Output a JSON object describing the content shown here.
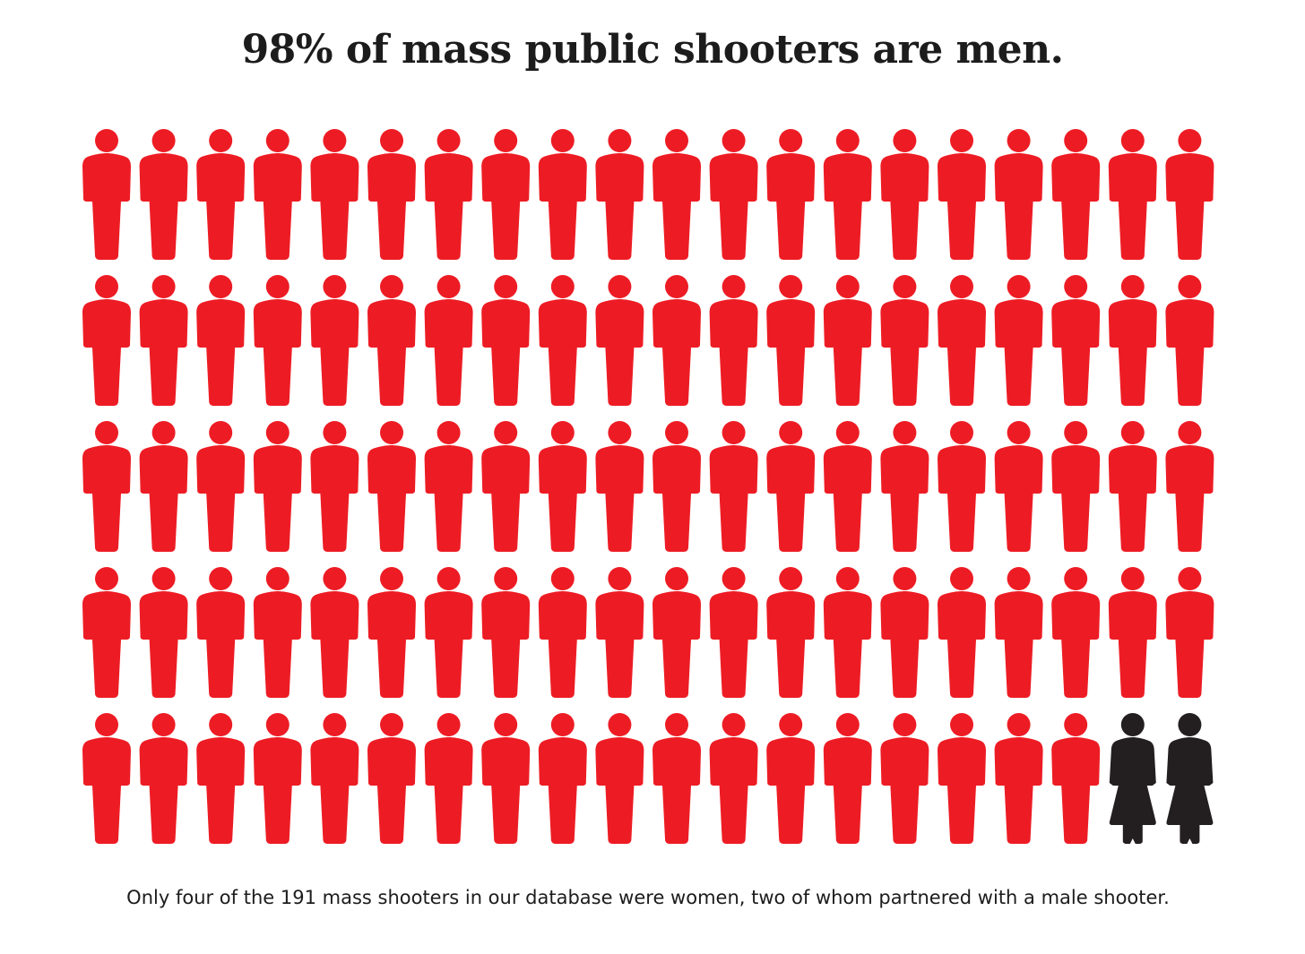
{
  "chart_data": {
    "type": "pictograph",
    "title": "98% of mass public shooters are men.",
    "caption": "Only four of the 191 mass shooters in our database were women, two of whom partnered with a male shooter.",
    "rows": 5,
    "columns": 20,
    "series": [
      {
        "name": "Men",
        "icon": "male-person-icon",
        "count": 98,
        "color": "#ed1c24"
      },
      {
        "name": "Women",
        "icon": "female-person-icon",
        "count": 2,
        "color": "#231f20"
      }
    ]
  }
}
